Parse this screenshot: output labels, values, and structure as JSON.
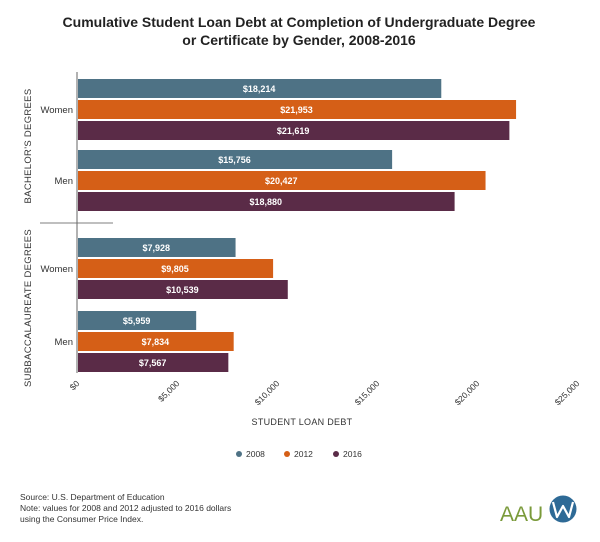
{
  "chart_data": {
    "type": "bar",
    "orientation": "horizontal",
    "title_lines": [
      "Cumulative Student Loan Debt at Completion of Undergraduate Degree",
      "or Certificate by Gender, 2008-2016"
    ],
    "xlabel": "STUDENT LOAN DEBT",
    "xlim": [
      0,
      25000
    ],
    "x_ticks": [
      {
        "value": 0,
        "label": "$0"
      },
      {
        "value": 5000,
        "label": "$5,000"
      },
      {
        "value": 10000,
        "label": "$10,000"
      },
      {
        "value": 15000,
        "label": "$15,000"
      },
      {
        "value": 20000,
        "label": "$20,000"
      },
      {
        "value": 25000,
        "label": "$25,000"
      }
    ],
    "grid": false,
    "legend_position": "bottom",
    "series": [
      {
        "name": "2008",
        "color": "#4e7285"
      },
      {
        "name": "2012",
        "color": "#d55f17"
      },
      {
        "name": "2016",
        "color": "#5a2b47"
      }
    ],
    "groups": [
      {
        "label": "BACHELOR'S DEGREES",
        "categories": [
          {
            "label": "Women",
            "values": [
              18214,
              21953,
              21619
            ],
            "value_labels": [
              "$18,214",
              "$21,953",
              "$21,619"
            ]
          },
          {
            "label": "Men",
            "values": [
              15756,
              20427,
              18880
            ],
            "value_labels": [
              "$15,756",
              "$20,427",
              "$18,880"
            ]
          }
        ]
      },
      {
        "label": "SUBBACCALAUREATE DEGREES",
        "categories": [
          {
            "label": "Women",
            "values": [
              7928,
              9805,
              10539
            ],
            "value_labels": [
              "$7,928",
              "$9,805",
              "$10,539"
            ]
          },
          {
            "label": "Men",
            "values": [
              5959,
              7834,
              7567
            ],
            "value_labels": [
              "$5,959",
              "$7,834",
              "$7,567"
            ]
          }
        ]
      }
    ]
  },
  "footer": {
    "lines": [
      "Source: U.S. Department of Education",
      "Note: values for 2008 and 2012 adjusted to 2016 dollars",
      "using the Consumer Price Index."
    ]
  },
  "logo": {
    "text": "AAU",
    "icon": "aauw-w-logo-icon",
    "text_color": "#7a9a3a",
    "circle_color": "#2e6a96"
  }
}
